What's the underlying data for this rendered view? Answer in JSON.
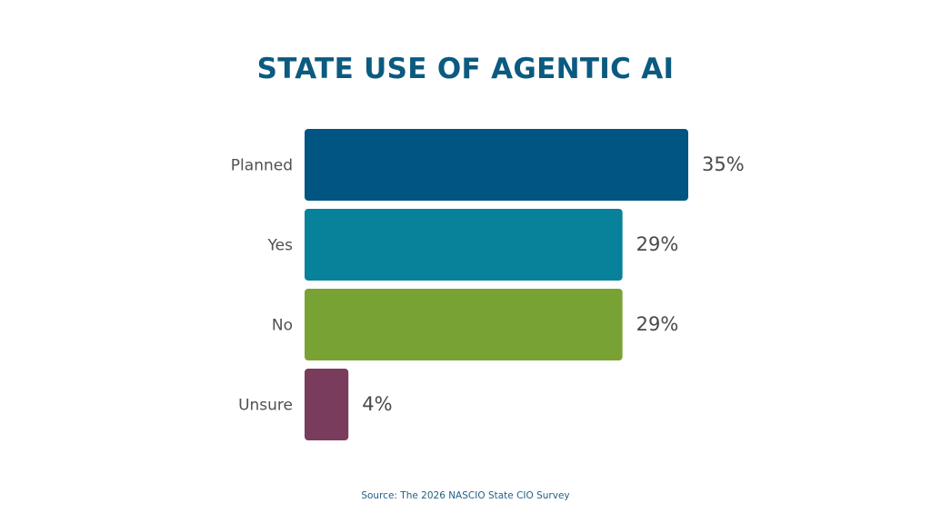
{
  "chart_data": {
    "type": "bar",
    "orientation": "horizontal",
    "title": "STATE USE OF AGENTIC AI",
    "categories": [
      "Planned",
      "Yes",
      "No",
      "Unsure"
    ],
    "values": [
      35,
      29,
      29,
      4
    ],
    "value_labels": [
      "35%",
      "29%",
      "29%",
      "4%"
    ],
    "colors": [
      "#005582",
      "#08819a",
      "#79a234",
      "#7a3c5c"
    ],
    "xlim": [
      0,
      35
    ],
    "grid": false,
    "source": "Source: The 2026 NASCIO State CIO Survey"
  }
}
